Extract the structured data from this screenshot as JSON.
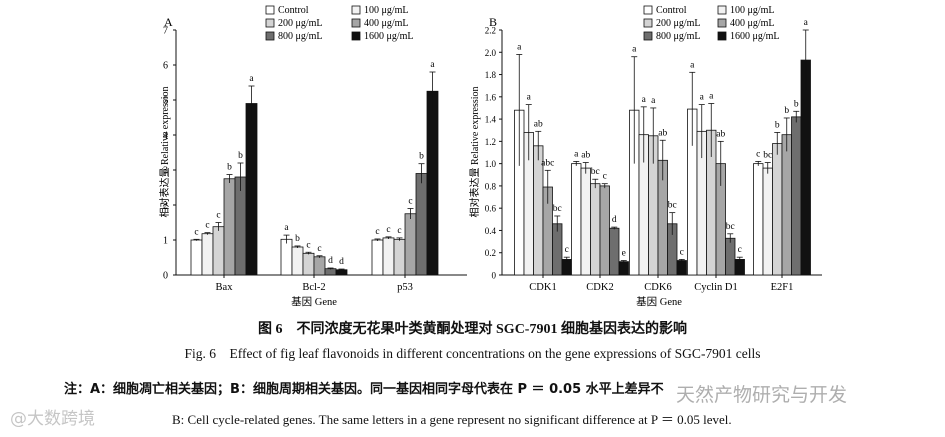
{
  "chart_data": [
    {
      "panel": "A",
      "type": "bar",
      "ylabel": "相对表达量 Relative expression",
      "xlabel": "基因 Gene",
      "ylim": [
        0,
        7
      ],
      "yticks": [
        0,
        1,
        2,
        3,
        4,
        5,
        6,
        7
      ],
      "legend_position": "top",
      "categories": [
        "Bax",
        "Bcl-2",
        "p53"
      ],
      "series": [
        {
          "name": "Control",
          "fill": "#ffffff",
          "values": [
            1.0,
            1.02,
            1.0
          ],
          "errors": [
            0.02,
            0.12,
            0.03
          ],
          "letters": [
            "c",
            "a",
            "c"
          ]
        },
        {
          "name": "100 μg/mL",
          "fill": "#f2f2f2",
          "values": [
            1.18,
            0.8,
            1.06
          ],
          "errors": [
            0.03,
            0.03,
            0.03
          ],
          "letters": [
            "c",
            "b",
            "c"
          ]
        },
        {
          "name": "200 μg/mL",
          "fill": "#d4d4d4",
          "values": [
            1.38,
            0.62,
            1.02
          ],
          "errors": [
            0.12,
            0.03,
            0.04
          ],
          "letters": [
            "c",
            "c",
            "c"
          ]
        },
        {
          "name": "400 μg/mL",
          "fill": "#a6a6a6",
          "values": [
            2.75,
            0.52,
            1.75
          ],
          "errors": [
            0.12,
            0.03,
            0.15
          ],
          "letters": [
            "b",
            "c",
            "c"
          ]
        },
        {
          "name": "800 μg/mL",
          "fill": "#6e6e6e",
          "values": [
            2.8,
            0.18,
            2.9
          ],
          "errors": [
            0.4,
            0.02,
            0.28
          ],
          "letters": [
            "b",
            "d",
            "b"
          ]
        },
        {
          "name": "1600 μg/mL",
          "fill": "#111111",
          "values": [
            4.9,
            0.15,
            5.25
          ],
          "errors": [
            0.5,
            0.02,
            0.55
          ],
          "letters": [
            "a",
            "d",
            "a"
          ]
        }
      ]
    },
    {
      "panel": "B",
      "type": "bar",
      "ylabel": "相对表达量 Relative expression",
      "xlabel": "基因 Gene",
      "ylim": [
        0,
        2.2
      ],
      "yticks": [
        "0",
        "0.2",
        "0.4",
        "0.6",
        "0.8",
        "1.0",
        "1.2",
        "1.4",
        "1.6",
        "1.8",
        "2.0",
        "2.2"
      ],
      "legend_position": "top",
      "categories": [
        "CDK1",
        "CDK2",
        "CDK6",
        "Cyclin D1",
        "E2F1"
      ],
      "series": [
        {
          "name": "Control",
          "fill": "#ffffff",
          "values": [
            1.48,
            1.0,
            1.48,
            1.49,
            1.0
          ],
          "errors": [
            0.5,
            0.02,
            0.48,
            0.33,
            0.02
          ],
          "letters": [
            "a",
            "a",
            "a",
            "a",
            "c"
          ]
        },
        {
          "name": "100 μg/mL",
          "fill": "#f2f2f2",
          "values": [
            1.28,
            0.96,
            1.26,
            1.29,
            0.96
          ],
          "errors": [
            0.25,
            0.05,
            0.25,
            0.24,
            0.05
          ],
          "letters": [
            "a",
            "ab",
            "a",
            "a",
            "bc"
          ]
        },
        {
          "name": "200 μg/mL",
          "fill": "#d4d4d4",
          "values": [
            1.16,
            0.82,
            1.25,
            1.3,
            1.18
          ],
          "errors": [
            0.13,
            0.04,
            0.25,
            0.24,
            0.1
          ],
          "letters": [
            "ab",
            "bc",
            "a",
            "a",
            "b"
          ]
        },
        {
          "name": "400 μg/mL",
          "fill": "#a6a6a6",
          "values": [
            0.79,
            0.8,
            1.03,
            1.0,
            1.26
          ],
          "errors": [
            0.15,
            0.02,
            0.18,
            0.2,
            0.15
          ],
          "letters": [
            "abc",
            "c",
            "ab",
            "ab",
            "b"
          ]
        },
        {
          "name": "800 μg/mL",
          "fill": "#6e6e6e",
          "values": [
            0.46,
            0.42,
            0.46,
            0.33,
            1.42
          ],
          "errors": [
            0.07,
            0.01,
            0.1,
            0.04,
            0.05
          ],
          "letters": [
            "bc",
            "d",
            "bc",
            "bc",
            "b"
          ]
        },
        {
          "name": "1600 μg/mL",
          "fill": "#111111",
          "values": [
            0.14,
            0.12,
            0.13,
            0.14,
            1.93
          ],
          "errors": [
            0.02,
            0.01,
            0.01,
            0.02,
            0.27
          ],
          "letters": [
            "c",
            "e",
            "c",
            "c",
            "a"
          ]
        }
      ]
    }
  ],
  "caption": {
    "zh": "图 6　不同浓度无花果叶类黄酮处理对 SGC-7901 细胞基因表达的影响",
    "en": "Fig. 6　Effect of fig leaf flavonoids in different concentrations on the gene expressions of SGC-7901 cells"
  },
  "note": {
    "zh": "注：A：细胞凋亡相关基因；B：细胞周期相关基因。同一基因相同字母代表在 P ＝ 0.05 水平上差异不",
    "en": "B: Cell cycle-related genes. The same letters in a gene represent no significant difference at P ＝ 0.05 level."
  },
  "watermarks": {
    "left": "@大数跨境",
    "right": "天然产物研究与开发"
  }
}
